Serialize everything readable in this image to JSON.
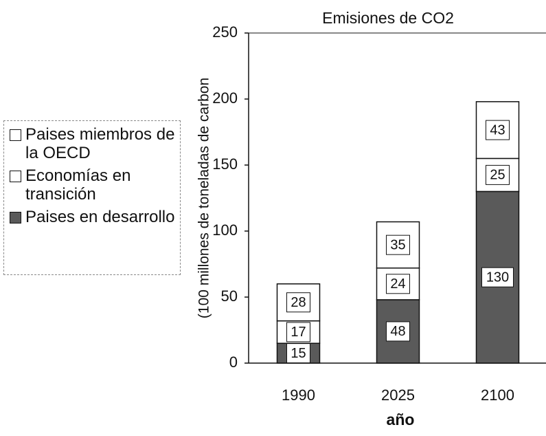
{
  "chart_data": {
    "type": "stacked_bar",
    "title": "Emisiones de CO2",
    "y_label": "(100 millones de toneladas de carbon",
    "x_label": "año",
    "categories": [
      "1990",
      "2025",
      "2100"
    ],
    "series": [
      {
        "name": "Paises en desarrollo",
        "color": "#5a5a5a",
        "values": [
          15,
          48,
          130
        ]
      },
      {
        "name": "Economías en transición",
        "color": "#ffffff",
        "values": [
          17,
          24,
          25
        ]
      },
      {
        "name": "Paises miembros de la OECD",
        "color": "#ffffff",
        "values": [
          28,
          35,
          43
        ]
      }
    ],
    "ylim": [
      0,
      250
    ],
    "yticks": [
      0,
      50,
      100,
      150,
      200,
      250
    ],
    "legend": "left"
  }
}
